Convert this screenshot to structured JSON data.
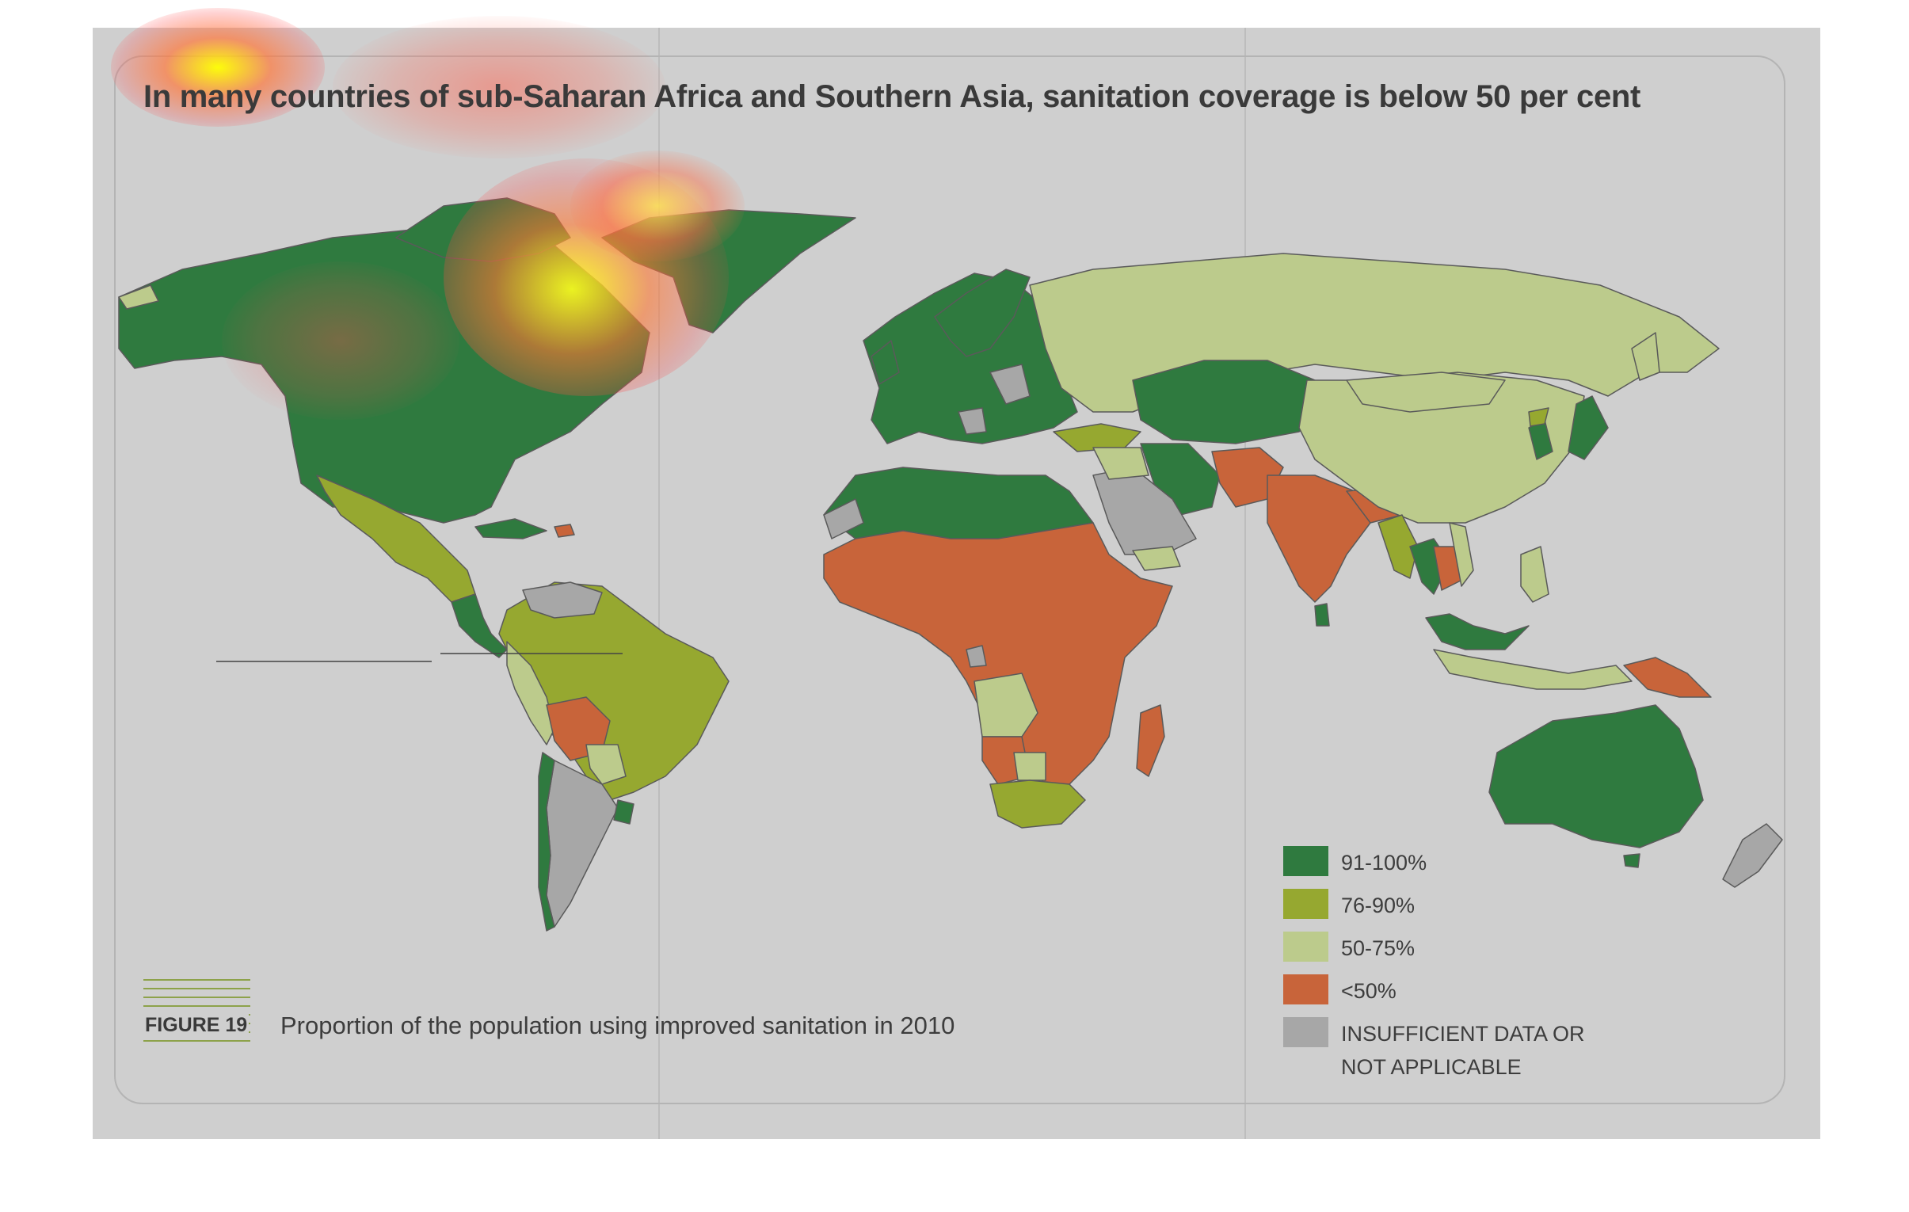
{
  "title": "In many countries of sub-Saharan Africa and Southern Asia, sanitation coverage is below 50 per cent",
  "figure": {
    "label": "FIGURE 19",
    "caption": "Proportion of the population using improved sanitation in 2010"
  },
  "legend": [
    {
      "label": "91-100%",
      "color": "#2f7a3f"
    },
    {
      "label": "76-90%",
      "color": "#96a830"
    },
    {
      "label": "50-75%",
      "color": "#bccb8c"
    },
    {
      "label": "<50%",
      "color": "#c8643a"
    },
    {
      "label": "INSUFFICIENT DATA OR NOT APPLICABLE",
      "color": "#a7a7a7"
    }
  ],
  "colors": {
    "background": "#cfcfcf",
    "ocean": "#cfcfcf",
    "border": "#5a5a5a"
  },
  "overlays": [
    "attention-heatmap"
  ]
}
